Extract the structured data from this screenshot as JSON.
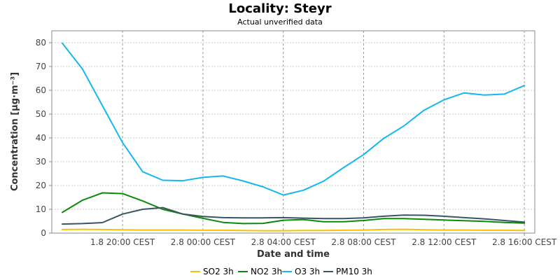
{
  "chart_data": {
    "type": "line",
    "title": "Locality: Steyr",
    "subtitle": "Actual unverified data",
    "xlabel": "Date and time",
    "ylabel": "Concentration [µg·m⁻³]",
    "ylim": [
      0,
      85
    ],
    "y_ticks": [
      0,
      10,
      20,
      30,
      40,
      50,
      60,
      70,
      80
    ],
    "x": [
      "1.8 17:00",
      "1.8 18:00",
      "1.8 19:00",
      "1.8 20:00",
      "1.8 21:00",
      "1.8 22:00",
      "1.8 23:00",
      "2.8 00:00",
      "2.8 01:00",
      "2.8 02:00",
      "2.8 03:00",
      "2.8 04:00",
      "2.8 05:00",
      "2.8 06:00",
      "2.8 07:00",
      "2.8 08:00",
      "2.8 09:00",
      "2.8 10:00",
      "2.8 11:00",
      "2.8 12:00",
      "2.8 13:00",
      "2.8 14:00",
      "2.8 15:00",
      "2.8 16:00"
    ],
    "x_ticks": [
      {
        "at": "1.8 20:00",
        "label": "1.8 20:00 CEST"
      },
      {
        "at": "2.8 00:00",
        "label": "2.8 00:00 CEST"
      },
      {
        "at": "2.8 04:00",
        "label": "2.8 04:00 CEST"
      },
      {
        "at": "2.8 08:00",
        "label": "2.8 08:00 CEST"
      },
      {
        "at": "2.8 12:00",
        "label": "2.8 12:00 CEST"
      },
      {
        "at": "2.8 16:00",
        "label": "2.8 16:00 CEST"
      }
    ],
    "grid": true,
    "legend_position": "bottom",
    "series": [
      {
        "name": "SO2 3h",
        "color": "#f5c400",
        "values": [
          1.5,
          1.6,
          1.5,
          1.4,
          1.3,
          1.3,
          1.3,
          1.2,
          1.2,
          1.1,
          1.0,
          1.0,
          1.1,
          1.1,
          1.2,
          1.3,
          1.5,
          1.6,
          1.4,
          1.3,
          1.3,
          1.2,
          1.2,
          1.1
        ]
      },
      {
        "name": "NO2 3h",
        "color": "#0c8a0c",
        "values": [
          8.7,
          13.8,
          16.9,
          16.6,
          13.5,
          10.0,
          8.0,
          6.2,
          4.5,
          4.0,
          4.1,
          5.4,
          5.7,
          4.8,
          4.8,
          5.3,
          6.1,
          6.1,
          5.8,
          5.5,
          5.2,
          4.9,
          4.5,
          4.2
        ]
      },
      {
        "name": "O3 3h",
        "color": "#14b8ee",
        "values": [
          79.8,
          69.0,
          53.5,
          38.0,
          25.8,
          22.2,
          22.0,
          23.4,
          24.0,
          21.9,
          19.4,
          16.0,
          18.0,
          21.8,
          27.5,
          33.0,
          39.8,
          45.0,
          51.6,
          56.0,
          58.9,
          58.0,
          58.4,
          62.0
        ]
      },
      {
        "name": "PM10 3h",
        "color": "#3a5460",
        "values": [
          3.8,
          4.0,
          4.4,
          8.0,
          10.0,
          10.7,
          8.0,
          7.0,
          6.5,
          6.4,
          6.4,
          6.5,
          6.3,
          6.1,
          6.1,
          6.4,
          7.1,
          7.6,
          7.5,
          7.1,
          6.5,
          6.0,
          5.3,
          4.6
        ]
      }
    ]
  }
}
